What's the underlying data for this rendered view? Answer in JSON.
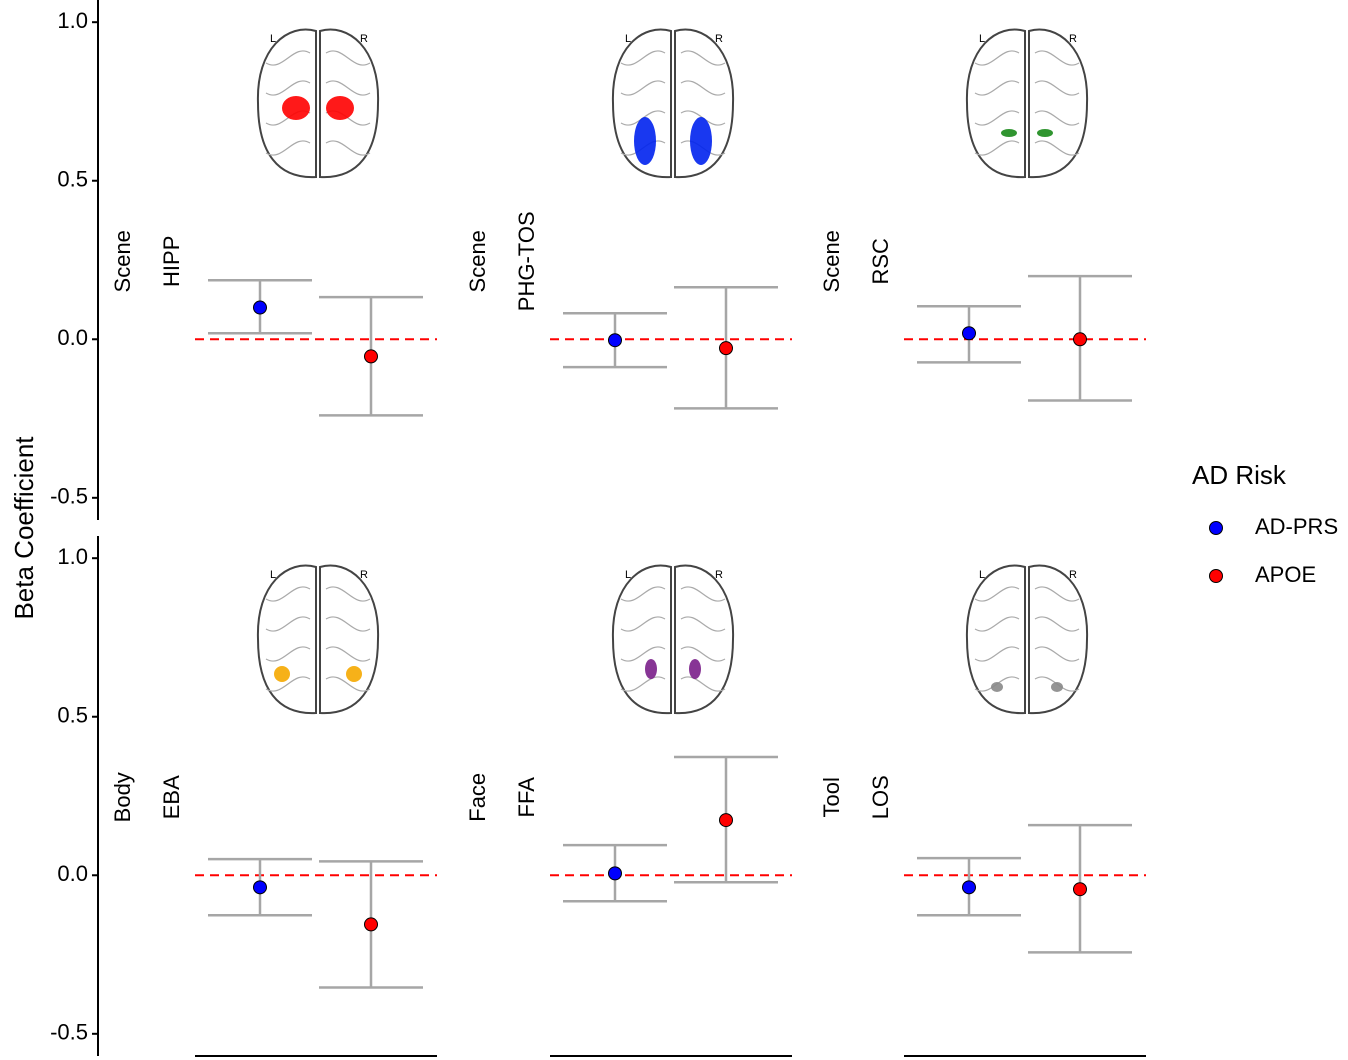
{
  "chart_data": {
    "type": "errorbar",
    "y_label": "Beta Coefficient",
    "ylim": [
      -0.57,
      1.07
    ],
    "yticks": [
      {
        "value": 1,
        "label": "1.0"
      },
      {
        "value": 0.5,
        "label": "0.5"
      },
      {
        "value": 0,
        "label": "0.0"
      },
      {
        "value": -0.5,
        "label": "-0.5"
      }
    ],
    "reference_line": 0,
    "brain_labels": [
      "L",
      "R"
    ],
    "legend": {
      "title": "AD Risk",
      "position": "right"
    },
    "series": [
      {
        "name": "AD-PRS",
        "color": "#0000ff"
      },
      {
        "name": "APOE",
        "color": "#ff0000"
      }
    ],
    "panels": [
      {
        "category": "Scene",
        "roi": "HIPP",
        "values": [
          0.1,
          -0.054
        ],
        "lower": [
          0.019,
          -0.24
        ],
        "upper": [
          0.186,
          0.133
        ]
      },
      {
        "category": "Scene",
        "roi": "PHG-TOS",
        "values": [
          -0.003,
          -0.028
        ],
        "lower": [
          -0.088,
          -0.218
        ],
        "upper": [
          0.082,
          0.164
        ]
      },
      {
        "category": "Scene",
        "roi": "RSC",
        "values": [
          0.019,
          0.0
        ],
        "lower": [
          -0.073,
          -0.193
        ],
        "upper": [
          0.104,
          0.199
        ]
      },
      {
        "category": "Body",
        "roi": "EBA",
        "values": [
          -0.038,
          -0.155
        ],
        "lower": [
          -0.126,
          -0.354
        ],
        "upper": [
          0.051,
          0.044
        ]
      },
      {
        "category": "Face",
        "roi": "FFA",
        "values": [
          0.006,
          0.174
        ],
        "lower": [
          -0.082,
          -0.022
        ],
        "upper": [
          0.095,
          0.373
        ]
      },
      {
        "category": "Tool",
        "roi": "LOS",
        "values": [
          -0.038,
          -0.044
        ],
        "lower": [
          -0.126,
          -0.243
        ],
        "upper": [
          0.054,
          0.158
        ]
      }
    ]
  }
}
